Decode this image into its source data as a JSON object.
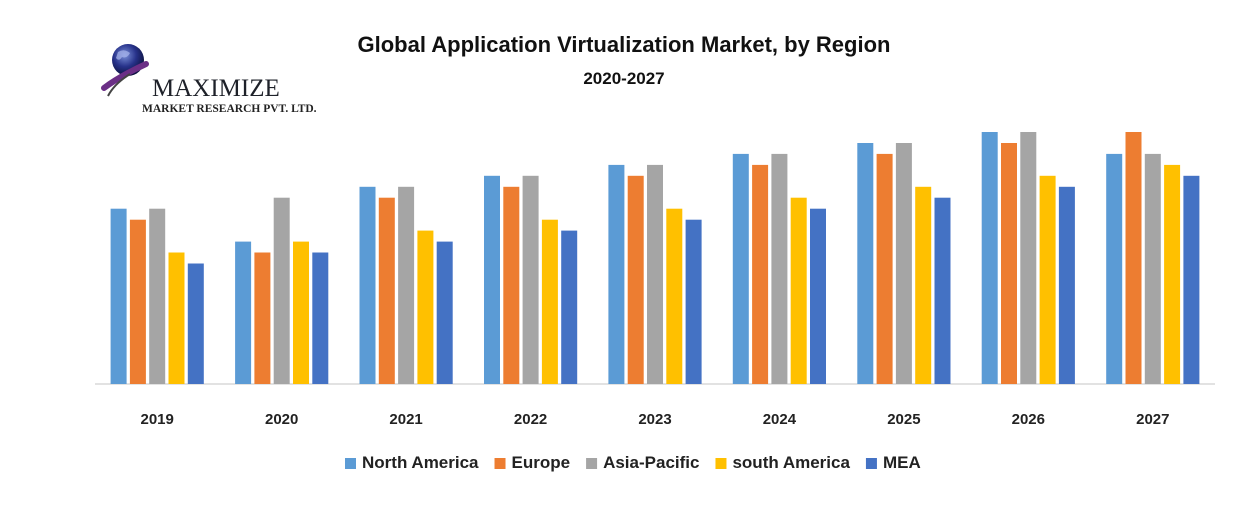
{
  "logo": {
    "name": "MAXIMIZE",
    "tagline": "MARKET RESEARCH PVT. LTD."
  },
  "chart_data": {
    "type": "bar",
    "title": "Global Application Virtualization Market, by Region",
    "subtitle": "2020-2027",
    "xlabel": "",
    "ylabel": "",
    "ylim": [
      0,
      23
    ],
    "grid": false,
    "legend_position": "bottom",
    "categories": [
      "2019",
      "2020",
      "2021",
      "2022",
      "2023",
      "2024",
      "2025",
      "2026",
      "2027"
    ],
    "series": [
      {
        "name": "North America",
        "color": "#5b9bd5",
        "values": [
          16,
          13,
          18,
          19,
          20,
          21,
          22,
          23,
          21
        ]
      },
      {
        "name": "Europe",
        "color": "#ed7d31",
        "values": [
          15,
          12,
          17,
          18,
          19,
          20,
          21,
          22,
          23
        ]
      },
      {
        "name": "Asia-Pacific",
        "color": "#a5a5a5",
        "values": [
          16,
          17,
          18,
          19,
          20,
          21,
          22,
          23,
          21
        ]
      },
      {
        "name": "south America",
        "color": "#ffc000",
        "values": [
          12,
          13,
          14,
          15,
          16,
          17,
          18,
          19,
          20
        ]
      },
      {
        "name": "MEA",
        "color": "#4472c4",
        "values": [
          11,
          12,
          13,
          14,
          15,
          16,
          17,
          18,
          19
        ]
      }
    ]
  }
}
